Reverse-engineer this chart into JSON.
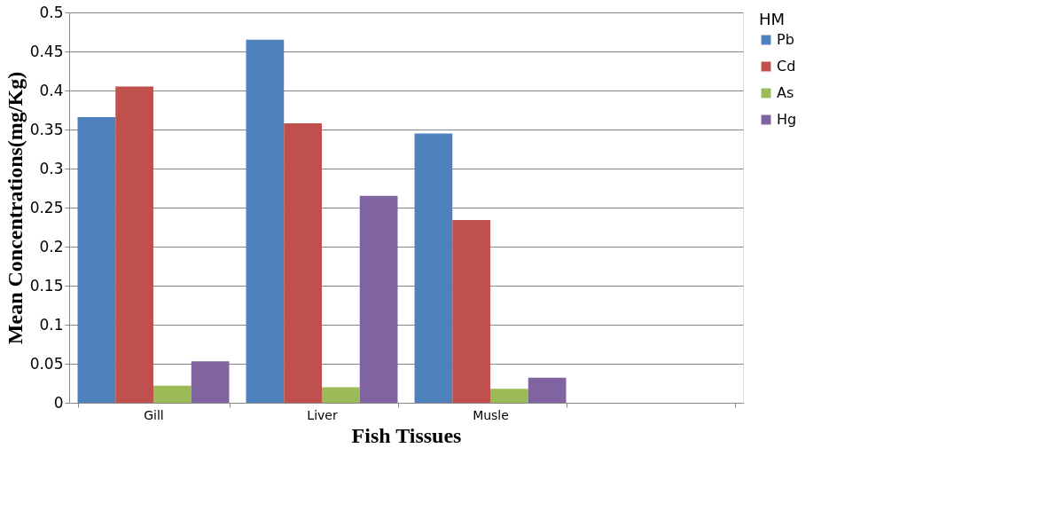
{
  "chart_data": {
    "type": "bar",
    "xlabel": "Fish Tissues",
    "ylabel": "Mean Concentrations(mg/Kg)",
    "legend_title": "HM",
    "categories": [
      "Gill",
      "Liver",
      "Musle",
      null
    ],
    "series": [
      {
        "name": "Pb",
        "color": "#4f81bd",
        "values": [
          0.366,
          0.465,
          0.345,
          null
        ]
      },
      {
        "name": "Cd",
        "color": "#c0504d",
        "values": [
          0.405,
          0.358,
          0.234,
          null
        ]
      },
      {
        "name": "As",
        "color": "#9bbb59",
        "values": [
          0.022,
          0.02,
          0.018,
          null
        ]
      },
      {
        "name": "Hg",
        "color": "#8064a2",
        "values": [
          0.053,
          0.265,
          0.032,
          null
        ]
      }
    ],
    "ylim": [
      0,
      0.5
    ],
    "yticks": [
      0,
      0.05,
      0.1,
      0.15,
      0.2,
      0.25,
      0.3,
      0.35,
      0.4,
      0.45,
      0.5
    ],
    "grid": "y",
    "legend": "right"
  }
}
